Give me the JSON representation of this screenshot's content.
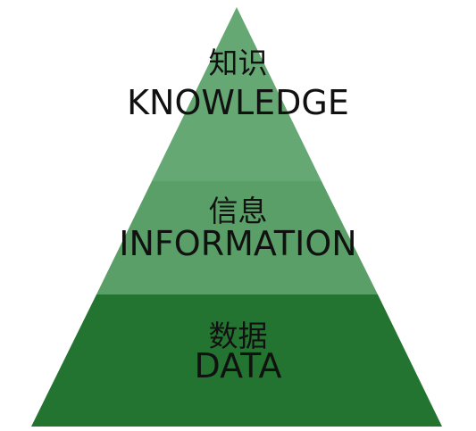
{
  "pyramid": {
    "levels": [
      {
        "chinese": "知识",
        "english": "KNOWLEDGE",
        "color": "#66a874"
      },
      {
        "chinese": "信息",
        "english": "INFORMATION",
        "color": "#5a9f67"
      },
      {
        "chinese": "数据",
        "english": "DATA",
        "color": "#237431"
      }
    ]
  }
}
